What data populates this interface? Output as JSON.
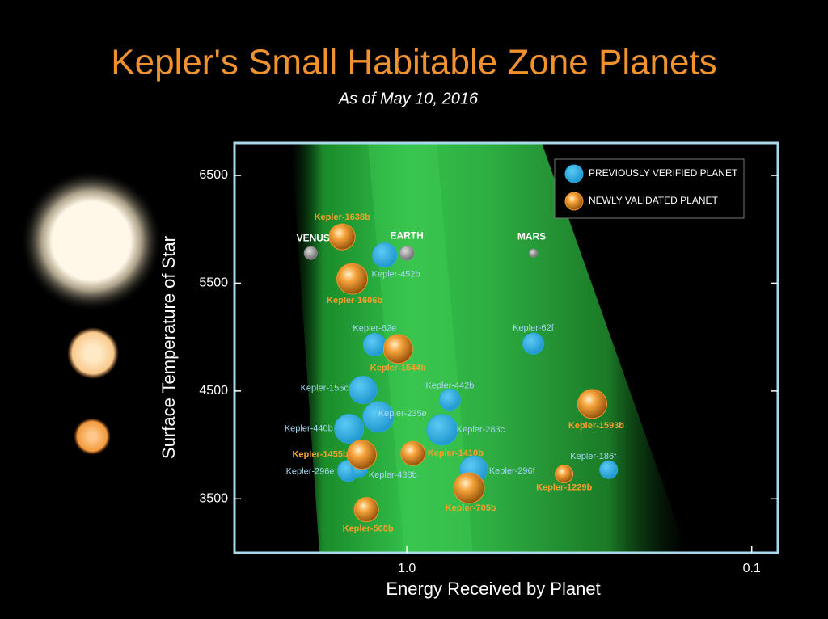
{
  "chart_data": {
    "type": "scatter",
    "title": "Kepler's Small Habitable Zone Planets",
    "subtitle": "As of May 10, 2016",
    "x_label": "Energy Received by Planet",
    "y_label": "Surface Temperature of Star",
    "xscale": "log",
    "xlim": [
      3.16,
      0.084
    ],
    "xticks": [
      {
        "value": 1,
        "label": "1.0"
      },
      0.1
    ],
    "ylim": [
      3000,
      6800
    ],
    "yticks": [
      3500,
      4500,
      5500,
      6500
    ],
    "legend": "top-right",
    "series": [
      {
        "color": "#8a8a8a",
        "labels": [
          "VENUS",
          "EARTH",
          "MARS"
        ],
        "x": [
          1.9,
          1.0,
          0.43
        ],
        "values": [
          5780,
          5780,
          5780
        ]
      },
      {
        "name": "PREVIOUSLY VERIFIED PLANET",
        "color": "#29a8e0",
        "labels": [
          "Kepler-452b",
          "Kepler-62e",
          "Kepler-62f",
          "Kepler-155c",
          "Kepler-442b",
          "Kepler-235e",
          "Kepler-440b",
          "Kepler-283c",
          "Kepler-296e",
          "Kepler-438b",
          "Kepler-296f",
          "Kepler-186f"
        ],
        "x": [
          1.16,
          1.24,
          0.43,
          1.34,
          0.75,
          1.21,
          1.47,
          0.79,
          1.48,
          1.37,
          0.64,
          0.26
        ],
        "values": [
          5760,
          4930,
          4940,
          4510,
          4420,
          4260,
          4150,
          4140,
          3760,
          3780,
          3770,
          3770
        ]
      },
      {
        "name": "NEWLY VALIDATED PLANET",
        "color": "#f0962a",
        "labels": [
          "Kepler-1638b",
          "Kepler-1606b",
          "Kepler-1544b",
          "Kepler-1593b",
          "Kepler-1455b",
          "Kepler-1410b",
          "Kepler-705b",
          "Kepler-1229b",
          "Kepler-560b"
        ],
        "x": [
          1.54,
          1.44,
          1.06,
          0.29,
          1.35,
          0.96,
          0.66,
          0.35,
          1.31
        ],
        "values": [
          5930,
          5540,
          4890,
          4380,
          3910,
          3920,
          3600,
          3730,
          3400
        ]
      }
    ]
  }
}
